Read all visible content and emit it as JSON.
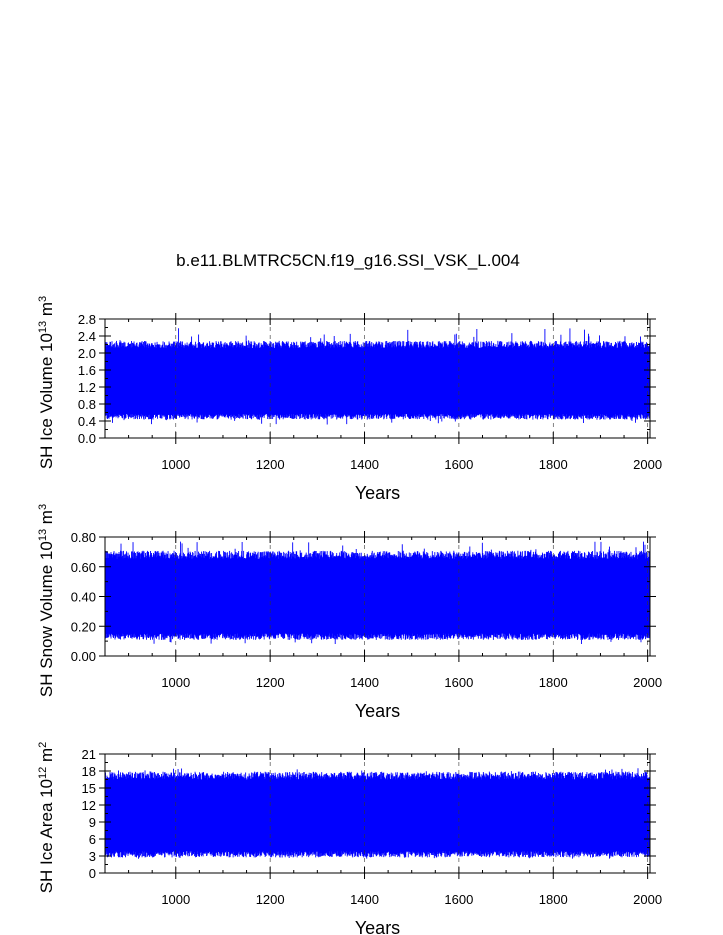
{
  "figure": {
    "title": "b.e11.BLMTRC5CN.f19_g16.SSI_VSK_L.004",
    "series_color": "#0000ff"
  },
  "chart_data": [
    {
      "type": "line",
      "title": "b.e11.BLMTRC5CN.f19_g16.SSI_VSK_L.004",
      "xlabel": "Years",
      "ylabel": {
        "text": "SH Ice Volume 10",
        "exp": "13",
        "unit": " m",
        "unit_exp": "3"
      },
      "xlim": [
        850,
        2005
      ],
      "ylim": [
        0,
        2.8
      ],
      "xticks": [
        1000,
        1200,
        1400,
        1600,
        1800,
        2000
      ],
      "yticks": [
        0.0,
        0.4,
        0.8,
        1.2,
        1.6,
        2.0,
        2.4,
        2.8
      ],
      "ytick_labels": [
        "0.0",
        "0.4",
        "0.8",
        "1.2",
        "1.6",
        "2.0",
        "2.4",
        "2.8"
      ],
      "grid": "dashed vertical lines at x ticks",
      "series": [
        {
          "color": "#0000ff",
          "x_start": 850,
          "x_end": 2005,
          "seasonal_min": 0.5,
          "seasonal_max": 2.2,
          "extreme_min": 0.3,
          "extreme_max": 2.6
        }
      ]
    },
    {
      "type": "line",
      "xlabel": "Years",
      "ylabel": {
        "text": "SH Snow Volume 10",
        "exp": "13",
        "unit": " m",
        "unit_exp": "3"
      },
      "xlim": [
        850,
        2005
      ],
      "ylim": [
        0,
        0.8
      ],
      "xticks": [
        1000,
        1200,
        1400,
        1600,
        1800,
        2000
      ],
      "yticks": [
        0.0,
        0.2,
        0.4,
        0.6,
        0.8
      ],
      "ytick_labels": [
        "0.00",
        "0.20",
        "0.40",
        "0.60",
        "0.80"
      ],
      "grid": "dashed vertical lines at x ticks",
      "series": [
        {
          "color": "#0000ff",
          "x_start": 850,
          "x_end": 2005,
          "seasonal_min": 0.13,
          "seasonal_max": 0.68,
          "extreme_min": 0.08,
          "extreme_max": 0.77
        }
      ]
    },
    {
      "type": "line",
      "xlabel": "Years",
      "ylabel": {
        "text": "SH Ice Area 10",
        "exp": "12",
        "unit": " m",
        "unit_exp": "2"
      },
      "xlim": [
        850,
        2005
      ],
      "ylim": [
        0,
        21
      ],
      "xticks": [
        1000,
        1200,
        1400,
        1600,
        1800,
        2000
      ],
      "yticks": [
        0,
        3,
        6,
        9,
        12,
        15,
        18,
        21
      ],
      "ytick_labels": [
        "0",
        "3",
        "6",
        "9",
        "12",
        "15",
        "18",
        "21"
      ],
      "grid": "dashed vertical lines at x ticks",
      "series": [
        {
          "color": "#0000ff",
          "x_start": 850,
          "x_end": 2005,
          "seasonal_min": 3.3,
          "seasonal_max": 17.2,
          "extreme_min": 2.5,
          "extreme_max": 18.5
        }
      ]
    }
  ]
}
